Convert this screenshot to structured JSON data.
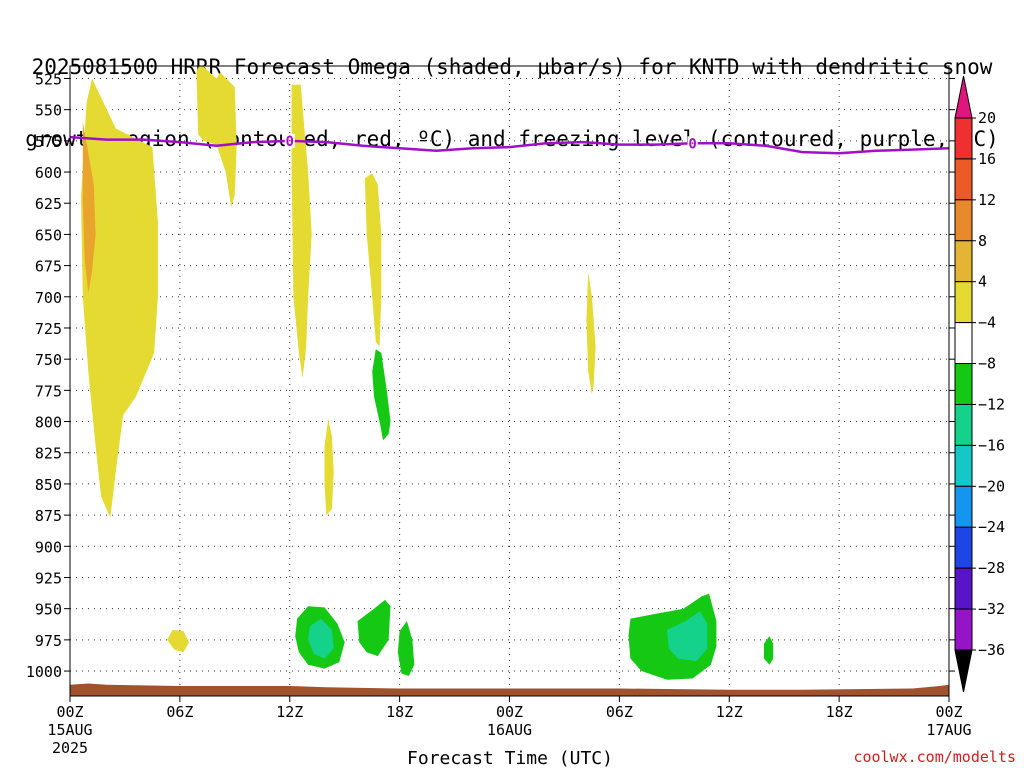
{
  "chart_data": {
    "type": "contour-time-height",
    "title_line1": "2025081500 HRRR Forecast Omega (shaded, μbar/s) for KNTD with dendritic snow",
    "title_line2": "growth region (contoured, red, ºC) and freezing level (contoured, purple, ºC)",
    "xlabel": "Forecast Time (UTC)",
    "credit": "coolwx.com/modelts",
    "x_ticks": [
      {
        "h": 0,
        "label": "00Z",
        "date": "15AUG",
        "year": "2025"
      },
      {
        "h": 6,
        "label": "06Z"
      },
      {
        "h": 12,
        "label": "12Z"
      },
      {
        "h": 18,
        "label": "18Z"
      },
      {
        "h": 24,
        "label": "00Z",
        "date": "16AUG"
      },
      {
        "h": 30,
        "label": "06Z"
      },
      {
        "h": 36,
        "label": "12Z"
      },
      {
        "h": 42,
        "label": "18Z"
      },
      {
        "h": 48,
        "label": "00Z",
        "date": "17AUG"
      }
    ],
    "xlim_hours": [
      0,
      48
    ],
    "y_levels": [
      "525",
      "550",
      "575",
      "600",
      "625",
      "650",
      "675",
      "700",
      "725",
      "750",
      "775",
      "800",
      "825",
      "850",
      "875",
      "900",
      "925",
      "950",
      "975",
      "1000"
    ],
    "ylim_hpa": [
      515,
      1020
    ],
    "grid": true,
    "colorbar": {
      "labels": [
        "20",
        "16",
        "12",
        "8",
        "4",
        "−4",
        "−8",
        "−12",
        "−16",
        "−20",
        "−24",
        "−28",
        "−32",
        "−36"
      ],
      "colors": [
        "#e0157d",
        "#f03030",
        "#ec5a28",
        "#e88a2c",
        "#e4b434",
        "#e4da32",
        "#ffffff",
        "#14c814",
        "#14d28a",
        "#14c8c8",
        "#1496f0",
        "#1e46e6",
        "#5a14c8",
        "#9614c8",
        "#a0a0a0"
      ],
      "unit": "μbar/s"
    },
    "freezing_level": {
      "label": "0",
      "color": "#a010c8",
      "points": [
        [
          0,
          572
        ],
        [
          2,
          574
        ],
        [
          4,
          574
        ],
        [
          6,
          576
        ],
        [
          8,
          579
        ],
        [
          10,
          576
        ],
        [
          12,
          575
        ],
        [
          14,
          576
        ],
        [
          16,
          579
        ],
        [
          18,
          581
        ],
        [
          20,
          583
        ],
        [
          22,
          581
        ],
        [
          24,
          580
        ],
        [
          26,
          577
        ],
        [
          28,
          576
        ],
        [
          30,
          578
        ],
        [
          32,
          578
        ],
        [
          34,
          577
        ],
        [
          36,
          577
        ],
        [
          38,
          579
        ],
        [
          40,
          584
        ],
        [
          42,
          585
        ],
        [
          44,
          583
        ],
        [
          46,
          582
        ],
        [
          48,
          581
        ]
      ],
      "label_hours": [
        12,
        34
      ]
    },
    "omega_regions": [
      {
        "level": "4",
        "color": "#e4da32",
        "points": [
          [
            0.6,
            620
          ],
          [
            0.9,
            545
          ],
          [
            1.2,
            525
          ],
          [
            2.5,
            565
          ],
          [
            4.5,
            580
          ],
          [
            4.8,
            640
          ],
          [
            4.8,
            700
          ],
          [
            4.6,
            745
          ],
          [
            3.6,
            780
          ],
          [
            2.9,
            795
          ],
          [
            2.5,
            840
          ],
          [
            2.2,
            877
          ],
          [
            1.7,
            860
          ],
          [
            1.4,
            820
          ],
          [
            1.0,
            760
          ],
          [
            0.7,
            700
          ]
        ]
      },
      {
        "level": "8",
        "color": "#e8a42c",
        "points": [
          [
            0.7,
            560
          ],
          [
            1.0,
            585
          ],
          [
            1.3,
            610
          ],
          [
            1.4,
            650
          ],
          [
            1.2,
            680
          ],
          [
            1.0,
            697
          ],
          [
            0.8,
            670
          ],
          [
            0.7,
            625
          ]
        ]
      },
      {
        "level": "4",
        "color": "#e4da32",
        "points": [
          [
            6.9,
            520
          ],
          [
            7.1,
            513
          ],
          [
            8.0,
            525
          ],
          [
            8.2,
            520
          ],
          [
            9.0,
            532
          ],
          [
            9.1,
            580
          ],
          [
            9.0,
            618
          ],
          [
            8.8,
            628
          ],
          [
            8.5,
            600
          ],
          [
            8.0,
            578
          ],
          [
            7.3,
            575
          ],
          [
            7.0,
            570
          ]
        ]
      },
      {
        "level": "4",
        "color": "#e4da32",
        "points": [
          [
            12.1,
            530
          ],
          [
            12.6,
            530
          ],
          [
            13.0,
            600
          ],
          [
            13.2,
            650
          ],
          [
            13.0,
            700
          ],
          [
            12.9,
            740
          ],
          [
            12.7,
            765
          ],
          [
            12.5,
            745
          ],
          [
            12.2,
            700
          ],
          [
            12.1,
            600
          ]
        ]
      },
      {
        "level": "4",
        "color": "#e4da32",
        "points": [
          [
            16.1,
            605
          ],
          [
            16.5,
            601
          ],
          [
            16.8,
            610
          ],
          [
            17.0,
            650
          ],
          [
            17.0,
            700
          ],
          [
            16.9,
            740
          ],
          [
            16.7,
            736
          ],
          [
            16.5,
            700
          ],
          [
            16.2,
            650
          ]
        ]
      },
      {
        "level": "4",
        "color": "#e4da32",
        "points": [
          [
            14.1,
            798
          ],
          [
            14.3,
            812
          ],
          [
            14.4,
            840
          ],
          [
            14.3,
            870
          ],
          [
            14.0,
            875
          ],
          [
            13.9,
            850
          ],
          [
            13.9,
            820
          ]
        ]
      },
      {
        "level": "4",
        "color": "#e4da32",
        "points": [
          [
            28.3,
            680
          ],
          [
            28.5,
            700
          ],
          [
            28.7,
            740
          ],
          [
            28.6,
            770
          ],
          [
            28.5,
            778
          ],
          [
            28.3,
            760
          ],
          [
            28.2,
            720
          ]
        ]
      },
      {
        "level": "4",
        "color": "#e4da32",
        "points": [
          [
            5.3,
            975
          ],
          [
            5.6,
            967
          ],
          [
            6.2,
            968
          ],
          [
            6.5,
            977
          ],
          [
            6.2,
            985
          ],
          [
            5.7,
            983
          ]
        ]
      },
      {
        "level": "-4",
        "color": "#14c814",
        "points": [
          [
            16.7,
            742
          ],
          [
            17.0,
            745
          ],
          [
            17.3,
            775
          ],
          [
            17.5,
            800
          ],
          [
            17.4,
            810
          ],
          [
            17.1,
            815
          ],
          [
            16.9,
            800
          ],
          [
            16.6,
            780
          ],
          [
            16.5,
            760
          ]
        ]
      },
      {
        "level": "-4",
        "color": "#14c814",
        "points": [
          [
            12.4,
            958
          ],
          [
            13.0,
            948
          ],
          [
            13.9,
            949
          ],
          [
            14.6,
            962
          ],
          [
            15.0,
            977
          ],
          [
            14.7,
            993
          ],
          [
            13.9,
            998
          ],
          [
            13.0,
            995
          ],
          [
            12.5,
            985
          ],
          [
            12.3,
            972
          ]
        ]
      },
      {
        "level": "-8",
        "color": "#14d28a",
        "points": [
          [
            13.1,
            964
          ],
          [
            13.7,
            958
          ],
          [
            14.3,
            967
          ],
          [
            14.4,
            982
          ],
          [
            13.9,
            990
          ],
          [
            13.3,
            986
          ],
          [
            13.0,
            975
          ]
        ]
      },
      {
        "level": "-4",
        "color": "#14c814",
        "points": [
          [
            15.7,
            960
          ],
          [
            16.6,
            950
          ],
          [
            17.2,
            943
          ],
          [
            17.5,
            948
          ],
          [
            17.4,
            975
          ],
          [
            16.8,
            988
          ],
          [
            16.2,
            985
          ],
          [
            15.8,
            977
          ]
        ]
      },
      {
        "level": "-4",
        "color": "#14c814",
        "points": [
          [
            18.0,
            968
          ],
          [
            18.4,
            960
          ],
          [
            18.7,
            975
          ],
          [
            18.8,
            995
          ],
          [
            18.5,
            1004
          ],
          [
            18.1,
            1002
          ],
          [
            17.9,
            985
          ]
        ]
      },
      {
        "level": "-4",
        "color": "#14c814",
        "points": [
          [
            30.6,
            958
          ],
          [
            32.0,
            954
          ],
          [
            33.5,
            950
          ],
          [
            34.5,
            940
          ],
          [
            34.9,
            938
          ],
          [
            35.3,
            960
          ],
          [
            35.3,
            980
          ],
          [
            35.0,
            995
          ],
          [
            34.0,
            1006
          ],
          [
            32.6,
            1007
          ],
          [
            31.2,
            1000
          ],
          [
            30.6,
            990
          ],
          [
            30.5,
            972
          ]
        ]
      },
      {
        "level": "-8",
        "color": "#14d28a",
        "points": [
          [
            32.6,
            967
          ],
          [
            33.6,
            960
          ],
          [
            34.4,
            952
          ],
          [
            34.8,
            962
          ],
          [
            34.8,
            982
          ],
          [
            34.2,
            992
          ],
          [
            33.2,
            990
          ],
          [
            32.7,
            982
          ]
        ]
      },
      {
        "level": "-4",
        "color": "#14c814",
        "points": [
          [
            37.9,
            978
          ],
          [
            38.2,
            972
          ],
          [
            38.4,
            978
          ],
          [
            38.4,
            990
          ],
          [
            38.2,
            995
          ],
          [
            37.9,
            990
          ]
        ]
      }
    ],
    "terrain": {
      "color": "#a0522d",
      "points": [
        [
          0,
          1011
        ],
        [
          1,
          1010
        ],
        [
          2,
          1011
        ],
        [
          6,
          1012
        ],
        [
          12,
          1012
        ],
        [
          14,
          1013
        ],
        [
          18,
          1014
        ],
        [
          24,
          1014
        ],
        [
          30,
          1014
        ],
        [
          36,
          1015
        ],
        [
          40,
          1015
        ],
        [
          46,
          1014
        ],
        [
          47.5,
          1012
        ],
        [
          48,
          1011
        ]
      ]
    }
  }
}
